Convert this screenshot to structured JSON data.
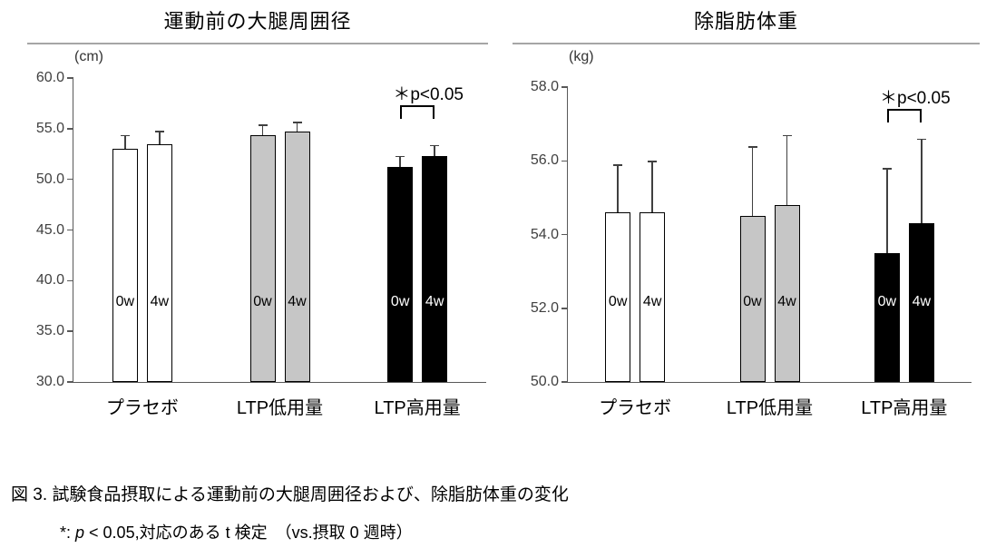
{
  "chart_data": [
    {
      "type": "bar",
      "title": "運動前の大腿周囲径",
      "unit_label": "(cm)",
      "ylim": [
        30.0,
        60.0
      ],
      "ytick_step": 5.0,
      "yticks": [
        60.0,
        55.0,
        50.0,
        45.0,
        40.0,
        35.0,
        30.0
      ],
      "legend_position": "none",
      "grid": false,
      "groups": [
        {
          "label": "プラセボ",
          "fill": "#ffffff",
          "bar_label_color": "#000000",
          "bars": [
            {
              "label": "0w",
              "value": 53.0,
              "err_top": 54.4
            },
            {
              "label": "4w",
              "value": 53.5,
              "err_top": 54.8
            }
          ]
        },
        {
          "label": "LTP低用量",
          "fill": "#c6c6c6",
          "bar_label_color": "#000000",
          "bars": [
            {
              "label": "0w",
              "value": 54.4,
              "err_top": 55.4
            },
            {
              "label": "4w",
              "value": 54.7,
              "err_top": 55.7
            }
          ]
        },
        {
          "label": "LTP高用量",
          "fill": "#000000",
          "bar_label_color": "#ffffff",
          "bars": [
            {
              "label": "0w",
              "value": 51.2,
              "err_top": 52.3
            },
            {
              "label": "4w",
              "value": 52.3,
              "err_top": 53.4
            }
          ]
        }
      ],
      "significance": {
        "group_index": 2,
        "label": "＊p<0.05",
        "bracket_value": 57.3
      }
    },
    {
      "type": "bar",
      "title": "除脂肪体重",
      "unit_label": "(kg)",
      "ylim": [
        50.0,
        58.0
      ],
      "ytick_step": 2.0,
      "yticks": [
        58.0,
        56.0,
        54.0,
        52.0,
        50.0
      ],
      "legend_position": "none",
      "grid": false,
      "groups": [
        {
          "label": "プラセボ",
          "fill": "#ffffff",
          "bar_label_color": "#000000",
          "bars": [
            {
              "label": "0w",
              "value": 54.6,
              "err_top": 55.9
            },
            {
              "label": "4w",
              "value": 54.6,
              "err_top": 56.0
            }
          ]
        },
        {
          "label": "LTP低用量",
          "fill": "#c6c6c6",
          "bar_label_color": "#000000",
          "bars": [
            {
              "label": "0w",
              "value": 54.5,
              "err_top": 56.4
            },
            {
              "label": "4w",
              "value": 54.8,
              "err_top": 56.7
            }
          ]
        },
        {
          "label": "LTP高用量",
          "fill": "#000000",
          "bar_label_color": "#ffffff",
          "bars": [
            {
              "label": "0w",
              "value": 53.5,
              "err_top": 55.8
            },
            {
              "label": "4w",
              "value": 54.3,
              "err_top": 56.6
            }
          ]
        }
      ],
      "significance": {
        "group_index": 2,
        "label": "＊p<0.05",
        "bracket_value": 57.4
      }
    }
  ],
  "caption": {
    "line1": "図 3. 試験食品摂取による運動前の大腿周囲径および、除脂肪体重の変化",
    "line2_prefix": "*: ",
    "line2_italic": "p",
    "line2_rest": " < 0.05,対応のある t 検定　（vs.摂取 0 週時）"
  },
  "colors": {
    "axis": "#595959",
    "tick_label": "#404040",
    "title_underline": "#a6a6a6",
    "bar_border": "#000000",
    "error_bar": "#404040",
    "significance_bracket": "#000000"
  }
}
